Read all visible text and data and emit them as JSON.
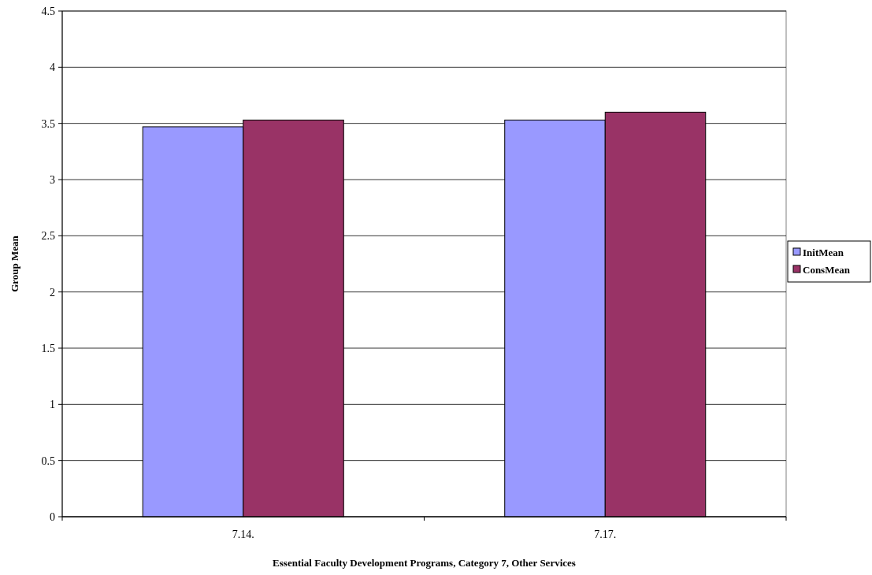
{
  "chart_data": {
    "type": "bar",
    "xlabel": "Essential Faculty Development Programs, Category 7, Other Services",
    "ylabel": "Group Mean",
    "categories": [
      "7.14.",
      "7.17."
    ],
    "series": [
      {
        "name": "InitMean",
        "color": "#9999ff",
        "values": [
          3.47,
          3.53
        ]
      },
      {
        "name": "ConsMean",
        "color": "#993366",
        "values": [
          3.53,
          3.6
        ]
      }
    ],
    "ylim": [
      0,
      4.5
    ],
    "yticks": [
      0,
      0.5,
      1,
      1.5,
      2,
      2.5,
      3,
      3.5,
      4,
      4.5
    ],
    "grid": "y",
    "legend": "right"
  }
}
